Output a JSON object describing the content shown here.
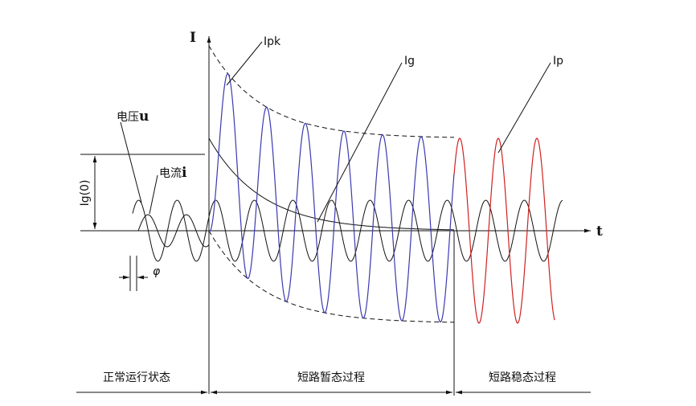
{
  "axes": {
    "y_label": "I",
    "x_label": "t"
  },
  "labels": {
    "ipk": "Ipk",
    "ig": "Ig",
    "ip": "Ip",
    "voltage": "电压",
    "voltage_symbol": "u",
    "current": "电流",
    "current_symbol": "i",
    "ig0": "Ig(0)",
    "phi": "φ"
  },
  "phases": [
    "正常运行状态",
    "短路暂态过程",
    "短路稳态过程"
  ]
}
